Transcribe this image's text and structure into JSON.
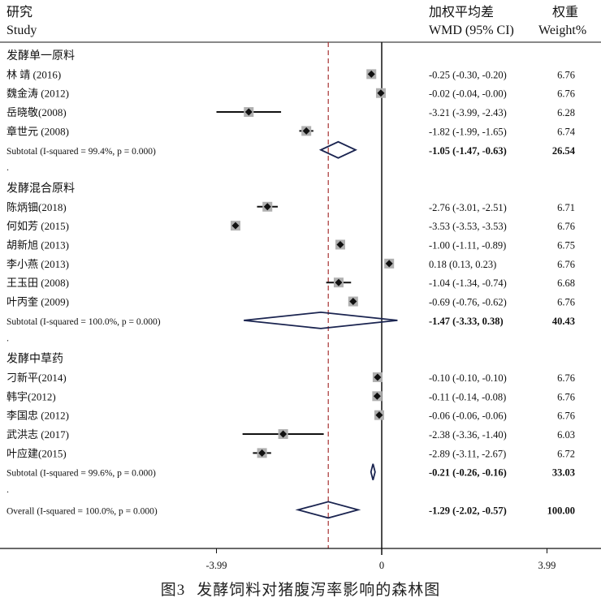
{
  "header": {
    "study_cn": "研究",
    "study_en": "Study",
    "wmd_cn": "加权平均差",
    "wmd_en": "WMD (95% CI)",
    "weight_cn": "权重",
    "weight_en": "Weight%"
  },
  "caption": {
    "number": "图3",
    "text": "发酵饲料对猪腹泻率影响的森林图"
  },
  "colors": {
    "point": "#111111",
    "square": "#b0b0b0",
    "ci_line": "#111111",
    "diamond": "#1a2450",
    "overall_line": "#a83232",
    "axis": "#111111"
  },
  "chart_data": {
    "type": "forest",
    "xlim": [
      -3.99,
      3.99
    ],
    "xticks": [
      {
        "value": -3.99,
        "label": "-3.99"
      },
      {
        "value": 0,
        "label": "0"
      },
      {
        "value": 3.99,
        "label": "3.99"
      }
    ],
    "overall_reference": -1.29,
    "rows": [
      {
        "kind": "group",
        "label": "发酵单一原料"
      },
      {
        "kind": "study",
        "label": "林 靖 (2016)",
        "est": -0.25,
        "lo": -0.3,
        "hi": -0.2,
        "ci": "-0.25 (-0.30, -0.20)",
        "weight": "6.76"
      },
      {
        "kind": "study",
        "label": "魏金涛 (2012)",
        "est": -0.02,
        "lo": -0.04,
        "hi": -0.0,
        "ci": "-0.02 (-0.04, -0.00)",
        "weight": "6.76"
      },
      {
        "kind": "study",
        "label": "岳晓敬(2008)",
        "est": -3.21,
        "lo": -3.99,
        "hi": -2.43,
        "ci": "-3.21 (-3.99, -2.43)",
        "weight": "6.28"
      },
      {
        "kind": "study",
        "label": "章世元 (2008)",
        "est": -1.82,
        "lo": -1.99,
        "hi": -1.65,
        "ci": "-1.82 (-1.99, -1.65)",
        "weight": "6.74"
      },
      {
        "kind": "subtotal",
        "label": "Subtotal  (I-squared = 99.4%, p = 0.000)",
        "est": -1.05,
        "lo": -1.47,
        "hi": -0.63,
        "ci": "-1.05 (-1.47, -0.63)",
        "weight": "26.54"
      },
      {
        "kind": "spacer",
        "label": "."
      },
      {
        "kind": "group",
        "label": "发酵混合原料"
      },
      {
        "kind": "study",
        "label": "陈炳钿(2018)",
        "est": -2.76,
        "lo": -3.01,
        "hi": -2.51,
        "ci": "-2.76 (-3.01, -2.51)",
        "weight": "6.71"
      },
      {
        "kind": "study",
        "label": "何如芳 (2015)",
        "est": -3.53,
        "lo": -3.53,
        "hi": -3.53,
        "ci": "-3.53 (-3.53, -3.53)",
        "weight": "6.76"
      },
      {
        "kind": "study",
        "label": "胡新旭 (2013)",
        "est": -1.0,
        "lo": -1.11,
        "hi": -0.89,
        "ci": "-1.00 (-1.11, -0.89)",
        "weight": "6.75"
      },
      {
        "kind": "study",
        "label": "李小燕 (2013)",
        "est": 0.18,
        "lo": 0.13,
        "hi": 0.23,
        "ci": "0.18 (0.13, 0.23)",
        "weight": "6.76"
      },
      {
        "kind": "study",
        "label": "王玉田 (2008)",
        "est": -1.04,
        "lo": -1.34,
        "hi": -0.74,
        "ci": "-1.04 (-1.34, -0.74)",
        "weight": "6.68"
      },
      {
        "kind": "study",
        "label": "叶丙奎 (2009)",
        "est": -0.69,
        "lo": -0.76,
        "hi": -0.62,
        "ci": "-0.69 (-0.76, -0.62)",
        "weight": "6.76"
      },
      {
        "kind": "subtotal",
        "label": "Subtotal  (I-squared = 100.0%, p = 0.000)",
        "est": -1.47,
        "lo": -3.33,
        "hi": 0.38,
        "ci": "-1.47 (-3.33, 0.38)",
        "weight": "40.43"
      },
      {
        "kind": "spacer",
        "label": "."
      },
      {
        "kind": "group",
        "label": "发酵中草药"
      },
      {
        "kind": "study",
        "label": "刁新平(2014)",
        "est": -0.1,
        "lo": -0.1,
        "hi": -0.1,
        "ci": "-0.10 (-0.10, -0.10)",
        "weight": "6.76"
      },
      {
        "kind": "study",
        "label": "韩宇(2012)",
        "est": -0.11,
        "lo": -0.14,
        "hi": -0.08,
        "ci": "-0.11 (-0.14, -0.08)",
        "weight": "6.76"
      },
      {
        "kind": "study",
        "label": "李国忠 (2012)",
        "est": -0.06,
        "lo": -0.06,
        "hi": -0.06,
        "ci": "-0.06 (-0.06, -0.06)",
        "weight": "6.76"
      },
      {
        "kind": "study",
        "label": "武洪志 (2017)",
        "est": -2.38,
        "lo": -3.36,
        "hi": -1.4,
        "ci": "-2.38 (-3.36, -1.40)",
        "weight": "6.03"
      },
      {
        "kind": "study",
        "label": "叶应建(2015)",
        "est": -2.89,
        "lo": -3.11,
        "hi": -2.67,
        "ci": "-2.89 (-3.11, -2.67)",
        "weight": "6.72"
      },
      {
        "kind": "subtotal",
        "label": "Subtotal  (I-squared = 99.6%, p = 0.000)",
        "est": -0.21,
        "lo": -0.26,
        "hi": -0.16,
        "ci": "-0.21 (-0.26, -0.16)",
        "weight": "33.03"
      },
      {
        "kind": "spacer",
        "label": "."
      },
      {
        "kind": "overall",
        "label": "Overall  (I-squared = 100.0%, p = 0.000)",
        "est": -1.29,
        "lo": -2.02,
        "hi": -0.57,
        "ci": "-1.29 (-2.02, -0.57)",
        "weight": "100.00"
      }
    ]
  }
}
